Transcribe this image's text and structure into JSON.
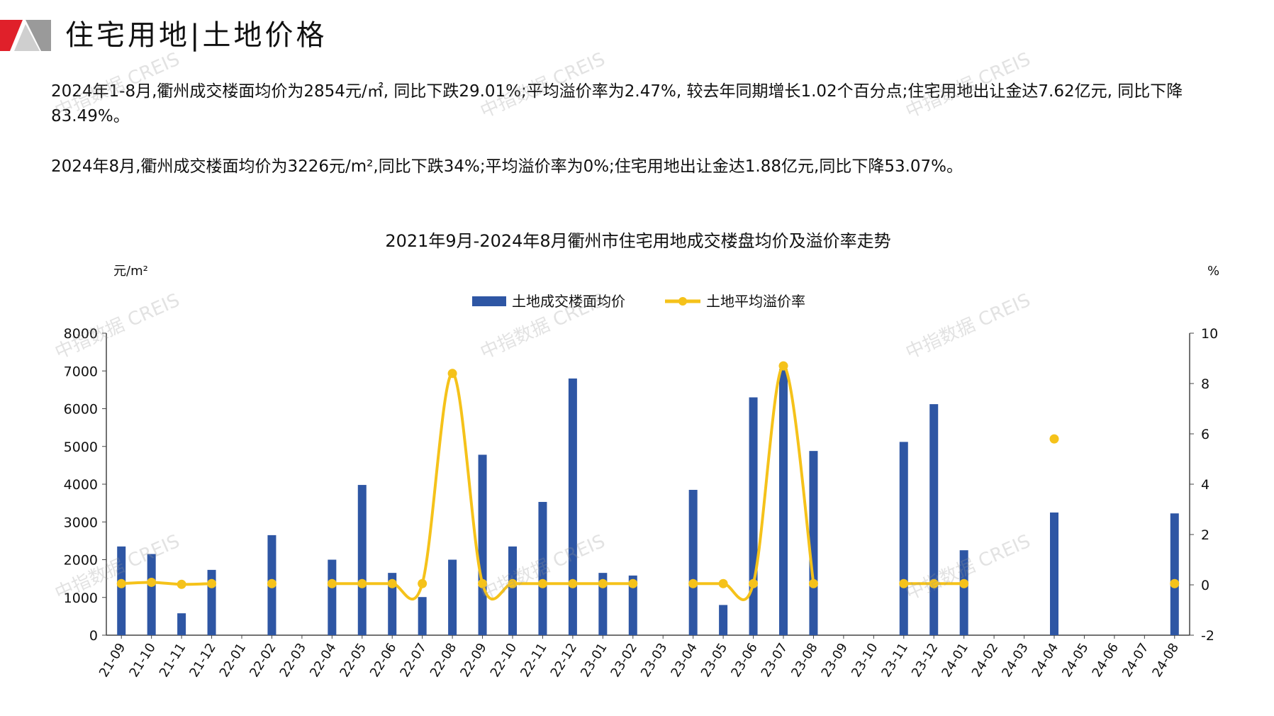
{
  "header": {
    "title": "住宅用地|土地价格"
  },
  "summary": {
    "paragraph1": "2024年1-8月,衢州成交楼面均价为2854元/㎡, 同比下跌29.01%;平均溢价率为2.47%, 较去年同期增长1.02个百分点;住宅用地出让金达7.62亿元, 同比下降83.49%。",
    "paragraph2": "2024年8月,衢州成交楼面均价为3226元/m²,同比下跌34%;平均溢价率为0%;住宅用地出让金达1.88亿元,同比下降53.07%。"
  },
  "watermark_text": "中指数据 CREIS",
  "colors": {
    "bar": "#2e56a4",
    "line": "#f5c21a",
    "axis": "#444444",
    "logo_red": "#e0202a",
    "logo_gray": "#9a9a9a"
  },
  "chart_data": {
    "type": "bar",
    "title": "2021年9月-2024年8月衢州市住宅用地成交楼盘均价及溢价率走势",
    "left_unit": "元/m²",
    "right_unit": "%",
    "categories": [
      "21-09",
      "21-10",
      "21-11",
      "21-12",
      "22-01",
      "22-02",
      "22-03",
      "22-04",
      "22-05",
      "22-06",
      "22-07",
      "22-08",
      "22-09",
      "22-10",
      "22-11",
      "22-12",
      "23-01",
      "23-02",
      "23-03",
      "23-04",
      "23-05",
      "23-06",
      "23-07",
      "23-08",
      "23-09",
      "23-10",
      "23-11",
      "23-12",
      "24-01",
      "24-02",
      "24-03",
      "24-04",
      "24-05",
      "24-06",
      "24-07",
      "24-08"
    ],
    "y_left": {
      "min": 0,
      "max": 8000,
      "ticks": [
        0,
        1000,
        2000,
        3000,
        4000,
        5000,
        6000,
        7000,
        8000
      ]
    },
    "y_right": {
      "min": -2,
      "max": 10,
      "ticks": [
        -2,
        0,
        2,
        4,
        6,
        8,
        10
      ]
    },
    "legend_placement": "top-center",
    "series": [
      {
        "name": "土地成交楼面均价",
        "kind": "bar",
        "axis": "left",
        "values": [
          2350,
          2150,
          580,
          1730,
          null,
          2650,
          null,
          2000,
          3980,
          1650,
          1010,
          2000,
          4780,
          2350,
          3530,
          6800,
          1650,
          1580,
          null,
          3850,
          800,
          6300,
          7050,
          4880,
          null,
          null,
          5120,
          6120,
          2250,
          null,
          null,
          3250,
          null,
          null,
          null,
          3226
        ]
      },
      {
        "name": "土地平均溢价率",
        "kind": "line",
        "axis": "right",
        "values": [
          0.05,
          0.1,
          0.02,
          0.05,
          null,
          0.05,
          null,
          0.05,
          0.05,
          0.05,
          0.05,
          8.4,
          0.05,
          0.05,
          0.05,
          0.05,
          0.05,
          0.05,
          null,
          0.05,
          0.05,
          0.05,
          8.7,
          0.05,
          null,
          null,
          0.05,
          0.05,
          0.05,
          null,
          null,
          5.8,
          null,
          null,
          null,
          0.05
        ]
      }
    ]
  }
}
